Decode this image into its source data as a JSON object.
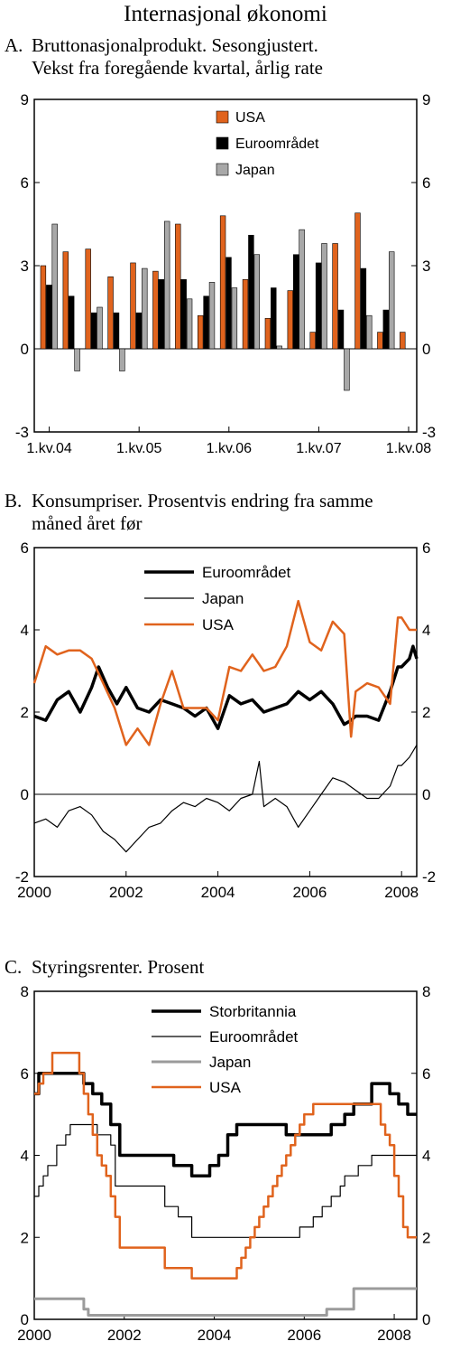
{
  "page": {
    "heading": "Internasjonal økonomi"
  },
  "chart_data": [
    {
      "id": "A",
      "type": "bar",
      "panel_letter": "A.",
      "title_line1": "Bruttonasjonalprodukt. Sesongjustert.",
      "title_line2": "Vekst fra foregående kvartal, årlig rate",
      "ylim": [
        -3,
        9
      ],
      "yticks": [
        -3,
        0,
        3,
        6,
        9
      ],
      "xtick_labels": [
        "1.kv.04",
        "1.kv.05",
        "1.kv.06",
        "1.kv.07",
        "1.kv.08"
      ],
      "categories": [
        "1.kv.04",
        "2.kv.04",
        "3.kv.04",
        "4.kv.04",
        "1.kv.05",
        "2.kv.05",
        "3.kv.05",
        "4.kv.05",
        "1.kv.06",
        "2.kv.06",
        "3.kv.06",
        "4.kv.06",
        "1.kv.07",
        "2.kv.07",
        "3.kv.07",
        "4.kv.07",
        "1.kv.08"
      ],
      "legend_position": "top-center",
      "series": [
        {
          "name": "USA",
          "color": "#e0631d",
          "values": [
            3.0,
            3.5,
            3.6,
            2.6,
            3.1,
            2.8,
            4.5,
            1.2,
            4.8,
            2.5,
            1.1,
            2.1,
            0.6,
            3.8,
            4.9,
            0.6,
            0.6
          ]
        },
        {
          "name": "Euroområdet",
          "color": "#000000",
          "values": [
            2.3,
            1.9,
            1.3,
            1.3,
            1.3,
            2.5,
            2.5,
            1.9,
            3.3,
            4.1,
            2.2,
            3.4,
            3.1,
            1.4,
            2.9,
            1.4,
            null
          ]
        },
        {
          "name": "Japan",
          "color": "#a8a8a8",
          "values": [
            4.5,
            -0.8,
            1.5,
            -0.8,
            2.9,
            4.6,
            1.8,
            2.4,
            2.2,
            3.4,
            0.1,
            4.3,
            3.8,
            -1.5,
            1.2,
            3.5,
            null
          ]
        }
      ]
    },
    {
      "id": "B",
      "type": "line",
      "panel_letter": "B.",
      "title_line1": "Konsumpriser. Prosentvis endring fra samme",
      "title_line2": "måned året før",
      "ylim": [
        -2,
        6
      ],
      "yticks": [
        -2,
        0,
        2,
        4,
        6
      ],
      "xlim": [
        2000,
        2008.33
      ],
      "xticks": [
        2000,
        2002,
        2004,
        2006,
        2008
      ],
      "legend_position": "top-center",
      "series": [
        {
          "name": "Euroområdet",
          "color": "#000000",
          "width": 3.5,
          "x": [
            2000,
            2000.25,
            2000.5,
            2000.75,
            2001,
            2001.25,
            2001.4,
            2001.6,
            2001.8,
            2002,
            2002.25,
            2002.5,
            2002.75,
            2003,
            2003.25,
            2003.5,
            2003.75,
            2004,
            2004.25,
            2004.5,
            2004.75,
            2005,
            2005.25,
            2005.5,
            2005.75,
            2006,
            2006.25,
            2006.5,
            2006.75,
            2006.9,
            2007,
            2007.25,
            2007.5,
            2007.75,
            2007.92,
            2008,
            2008.17,
            2008.25,
            2008.33
          ],
          "y": [
            1.9,
            1.8,
            2.3,
            2.5,
            2.0,
            2.6,
            3.1,
            2.6,
            2.2,
            2.6,
            2.1,
            2.0,
            2.3,
            2.2,
            2.1,
            1.9,
            2.1,
            1.6,
            2.4,
            2.2,
            2.3,
            2.0,
            2.1,
            2.2,
            2.5,
            2.3,
            2.5,
            2.2,
            1.7,
            1.8,
            1.9,
            1.9,
            1.8,
            2.5,
            3.1,
            3.1,
            3.3,
            3.6,
            3.3
          ]
        },
        {
          "name": "Japan",
          "color": "#000000",
          "width": 1.2,
          "x": [
            2000,
            2000.25,
            2000.5,
            2000.75,
            2001,
            2001.25,
            2001.5,
            2001.75,
            2002,
            2002.25,
            2002.5,
            2002.75,
            2003,
            2003.25,
            2003.5,
            2003.75,
            2004,
            2004.25,
            2004.5,
            2004.75,
            2004.9,
            2005,
            2005.25,
            2005.5,
            2005.75,
            2006,
            2006.25,
            2006.5,
            2006.75,
            2007,
            2007.25,
            2007.5,
            2007.75,
            2007.92,
            2008,
            2008.17,
            2008.33
          ],
          "y": [
            -0.7,
            -0.6,
            -0.8,
            -0.4,
            -0.3,
            -0.5,
            -0.9,
            -1.1,
            -1.4,
            -1.1,
            -0.8,
            -0.7,
            -0.4,
            -0.2,
            -0.3,
            -0.1,
            -0.2,
            -0.4,
            -0.1,
            0.0,
            0.8,
            -0.3,
            -0.1,
            -0.3,
            -0.8,
            -0.4,
            0.0,
            0.4,
            0.3,
            0.1,
            -0.1,
            -0.1,
            0.2,
            0.7,
            0.7,
            0.9,
            1.2
          ]
        },
        {
          "name": "USA",
          "color": "#e0631d",
          "width": 2.5,
          "x": [
            2000,
            2000.25,
            2000.5,
            2000.75,
            2001,
            2001.25,
            2001.5,
            2001.75,
            2002,
            2002.25,
            2002.5,
            2002.75,
            2003,
            2003.25,
            2003.5,
            2003.75,
            2004,
            2004.25,
            2004.5,
            2004.75,
            2005,
            2005.25,
            2005.5,
            2005.75,
            2006,
            2006.25,
            2006.5,
            2006.75,
            2006.9,
            2007,
            2007.25,
            2007.5,
            2007.75,
            2007.92,
            2008,
            2008.17,
            2008.33
          ],
          "y": [
            2.7,
            3.6,
            3.4,
            3.5,
            3.5,
            3.3,
            2.7,
            2.1,
            1.2,
            1.6,
            1.2,
            2.2,
            3.0,
            2.1,
            2.1,
            2.1,
            1.8,
            3.1,
            3.0,
            3.4,
            3.0,
            3.1,
            3.6,
            4.7,
            3.7,
            3.5,
            4.2,
            3.9,
            1.4,
            2.5,
            2.7,
            2.6,
            2.2,
            4.3,
            4.3,
            4.0,
            4.0
          ]
        }
      ]
    },
    {
      "id": "C",
      "type": "line",
      "panel_letter": "C.",
      "title_line1": "Styringsrenter. Prosent",
      "title_line2": "",
      "ylim": [
        0,
        8
      ],
      "yticks": [
        0,
        2,
        4,
        6,
        8
      ],
      "xlim": [
        2000,
        2008.5
      ],
      "xticks": [
        2000,
        2002,
        2004,
        2006,
        2008
      ],
      "legend_position": "top-center",
      "step": true,
      "series": [
        {
          "name": "Storbritannia",
          "color": "#000000",
          "width": 3.5,
          "x": [
            2000,
            2000.1,
            2001.1,
            2001.3,
            2001.5,
            2001.7,
            2001.9,
            2003.1,
            2003.5,
            2003.9,
            2004.1,
            2004.3,
            2004.5,
            2005.6,
            2006.6,
            2006.9,
            2007.1,
            2007.5,
            2007.9,
            2008.1,
            2008.3,
            2008.5
          ],
          "y": [
            5.5,
            6.0,
            5.75,
            5.5,
            5.25,
            4.75,
            4.0,
            3.75,
            3.5,
            3.75,
            4.0,
            4.5,
            4.75,
            4.5,
            4.75,
            5.0,
            5.25,
            5.75,
            5.5,
            5.25,
            5.0,
            5.0
          ]
        },
        {
          "name": "Euroområdet",
          "color": "#000000",
          "width": 1.2,
          "x": [
            2000,
            2000.1,
            2000.2,
            2000.3,
            2000.5,
            2000.7,
            2000.8,
            2001.4,
            2001.7,
            2001.8,
            2002.9,
            2003.2,
            2003.5,
            2005.9,
            2006.2,
            2006.4,
            2006.6,
            2006.8,
            2006.9,
            2007.2,
            2007.5,
            2008.5
          ],
          "y": [
            3.0,
            3.25,
            3.5,
            3.75,
            4.25,
            4.5,
            4.75,
            4.5,
            4.25,
            3.25,
            2.75,
            2.5,
            2.0,
            2.25,
            2.5,
            2.75,
            3.0,
            3.25,
            3.5,
            3.75,
            4.0,
            4.0
          ]
        },
        {
          "name": "Japan",
          "color": "#9b9b9b",
          "width": 3,
          "x": [
            2000,
            2000.6,
            2001.1,
            2001.2,
            2006.5,
            2007.1,
            2008.5
          ],
          "y": [
            0.5,
            0.5,
            0.25,
            0.1,
            0.25,
            0.75,
            0.75
          ]
        },
        {
          "name": "USA",
          "color": "#e0631d",
          "width": 2.5,
          "x": [
            2000,
            2000.1,
            2000.2,
            2000.4,
            2001.0,
            2001.1,
            2001.2,
            2001.3,
            2001.4,
            2001.5,
            2001.6,
            2001.7,
            2001.8,
            2001.9,
            2002.9,
            2003.5,
            2004.5,
            2004.6,
            2004.7,
            2004.8,
            2004.9,
            2005.0,
            2005.1,
            2005.2,
            2005.3,
            2005.4,
            2005.5,
            2005.6,
            2005.7,
            2005.8,
            2005.9,
            2006.0,
            2006.1,
            2006.2,
            2006.4,
            2007.7,
            2007.8,
            2007.9,
            2008.0,
            2008.1,
            2008.2,
            2008.3,
            2008.5
          ],
          "y": [
            5.5,
            5.75,
            6.0,
            6.5,
            6.0,
            5.5,
            5.0,
            4.5,
            4.0,
            3.75,
            3.5,
            3.0,
            2.5,
            1.75,
            1.25,
            1.0,
            1.25,
            1.5,
            1.75,
            2.0,
            2.25,
            2.5,
            2.75,
            3.0,
            3.25,
            3.5,
            3.75,
            4.0,
            4.25,
            4.5,
            4.75,
            5.0,
            5.0,
            5.25,
            5.25,
            4.75,
            4.5,
            4.25,
            3.5,
            3.0,
            2.25,
            2.0,
            2.0
          ]
        }
      ]
    }
  ]
}
